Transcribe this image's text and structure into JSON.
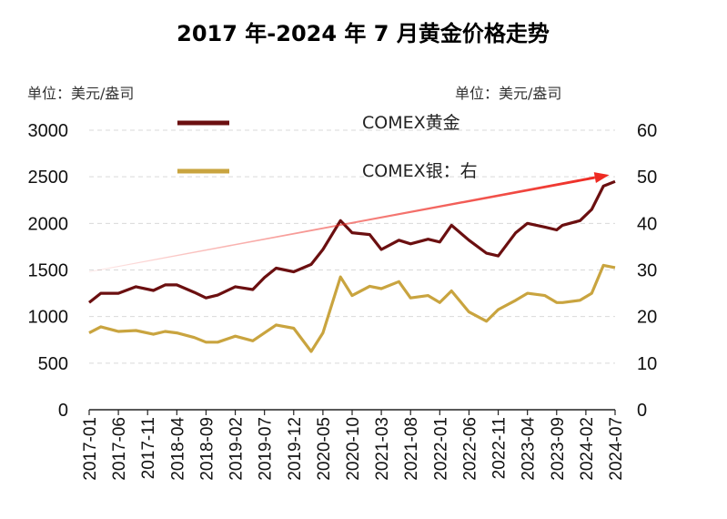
{
  "chart_data": {
    "type": "line",
    "title": "2017 年-2024 年 7 月黄金价格走势",
    "left_unit": "单位：美元/盎司",
    "right_unit": "单位：美元/盎司",
    "x_tick_labels": [
      "2017-01",
      "2017-06",
      "2017-11",
      "2018-04",
      "2018-09",
      "2019-02",
      "2019-07",
      "2019-12",
      "2020-05",
      "2020-10",
      "2021-03",
      "2021-08",
      "2022-01",
      "2022-06",
      "2022-11",
      "2023-04",
      "2023-09",
      "2024-02",
      "2024-07"
    ],
    "left_axis": {
      "ylim": [
        0,
        3000
      ],
      "ticks": [
        "0",
        "500",
        "1000",
        "1500",
        "2000",
        "2500",
        "3000"
      ]
    },
    "right_axis": {
      "ylim": [
        0,
        60
      ],
      "ticks": [
        "0",
        "10",
        "20",
        "30",
        "40",
        "50",
        "60"
      ]
    },
    "grid": true,
    "colors": {
      "gold": "#6b0f10",
      "silver": "#c9a43f",
      "arrow": "#ee2a22"
    },
    "series": [
      {
        "name": "COMEX黄金",
        "axis": "left",
        "x": [
          "2017-01",
          "2017-03",
          "2017-06",
          "2017-09",
          "2017-12",
          "2018-02",
          "2018-04",
          "2018-07",
          "2018-09",
          "2018-11",
          "2019-02",
          "2019-05",
          "2019-07",
          "2019-09",
          "2019-12",
          "2020-03",
          "2020-05",
          "2020-08",
          "2020-10",
          "2021-01",
          "2021-03",
          "2021-06",
          "2021-08",
          "2021-11",
          "2022-01",
          "2022-03",
          "2022-06",
          "2022-09",
          "2022-11",
          "2023-02",
          "2023-04",
          "2023-07",
          "2023-09",
          "2023-10",
          "2024-01",
          "2024-03",
          "2024-05",
          "2024-07"
        ],
        "values": [
          1150,
          1250,
          1250,
          1320,
          1280,
          1340,
          1340,
          1260,
          1200,
          1230,
          1320,
          1290,
          1420,
          1520,
          1480,
          1560,
          1720,
          2030,
          1900,
          1880,
          1720,
          1820,
          1780,
          1830,
          1800,
          1980,
          1820,
          1680,
          1650,
          1900,
          2000,
          1960,
          1930,
          1980,
          2030,
          2150,
          2400,
          2450
        ]
      },
      {
        "name": "COMEX银：右",
        "axis": "right",
        "x": [
          "2017-01",
          "2017-03",
          "2017-06",
          "2017-09",
          "2017-12",
          "2018-02",
          "2018-04",
          "2018-07",
          "2018-09",
          "2018-11",
          "2019-02",
          "2019-05",
          "2019-07",
          "2019-09",
          "2019-12",
          "2020-03",
          "2020-05",
          "2020-08",
          "2020-10",
          "2021-01",
          "2021-03",
          "2021-06",
          "2021-08",
          "2021-11",
          "2022-01",
          "2022-03",
          "2022-06",
          "2022-09",
          "2022-11",
          "2023-02",
          "2023-04",
          "2023-07",
          "2023-09",
          "2023-10",
          "2024-01",
          "2024-03",
          "2024-05",
          "2024-07"
        ],
        "values": [
          16.5,
          17.8,
          16.8,
          17,
          16.2,
          16.8,
          16.5,
          15.5,
          14.5,
          14.5,
          15.8,
          14.8,
          16.5,
          18.2,
          17.5,
          12.5,
          16.5,
          28.5,
          24.5,
          26.5,
          26,
          27.5,
          24,
          24.5,
          23,
          25.5,
          21,
          19,
          21.5,
          23.5,
          25,
          24.5,
          23,
          23,
          23.5,
          25,
          31,
          30.5
        ]
      }
    ],
    "annotation_arrow": {
      "from": [
        "2017-01",
        1480
      ],
      "to": [
        "2024-06",
        2520
      ]
    }
  }
}
